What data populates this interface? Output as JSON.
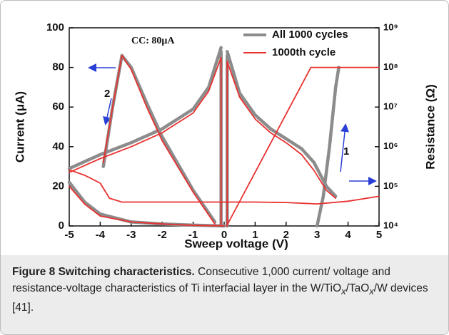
{
  "chart_data": {
    "type": "line",
    "xlabel": "Sweep voltage (V)",
    "ylabel": "Current (μA)",
    "y2label": "Resistance (Ω)",
    "annotations": [
      "CC: 80μA",
      "1",
      "2"
    ],
    "xlim": [
      -5,
      5
    ],
    "xticks": [
      -5,
      -4,
      -3,
      -2,
      -1,
      0,
      1,
      2,
      3,
      4,
      5
    ],
    "ylim": [
      0,
      100
    ],
    "yticks": [
      0,
      20,
      40,
      60,
      80,
      100
    ],
    "y2lim": [
      10000,
      1000000000
    ],
    "y2log": true,
    "y2ticks": [
      {
        "value": 10000,
        "label": "10⁴"
      },
      {
        "value": 100000,
        "label": "10⁵"
      },
      {
        "value": 1000000,
        "label": "10⁶"
      },
      {
        "value": 10000000,
        "label": "10⁷"
      },
      {
        "value": 100000000,
        "label": "10⁸"
      },
      {
        "value": 1000000000,
        "label": "10⁹"
      }
    ],
    "legend": "upper right",
    "series": [
      {
        "name": "All 1000 cycles",
        "color": "#8c8c8c",
        "x": [
          0.1,
          0.5,
          1,
          1.5,
          2,
          2.5,
          2.9,
          3.3,
          3.6,
          null,
          3.0,
          3.2,
          3.4,
          3.6,
          3.7,
          null,
          -0.1,
          -0.5,
          -1,
          -2,
          -3,
          -4,
          -5,
          null,
          -3.9,
          -3.6,
          -3.3,
          -3.0,
          -2.5,
          -2,
          -1,
          -0.3,
          null,
          -5,
          -4.5,
          -4,
          -3,
          -2,
          -1,
          0,
          null,
          -0.1,
          -0.1,
          null,
          0.1,
          0.1
        ],
        "values": [
          88,
          67,
          56,
          49,
          44,
          39,
          32,
          20,
          15,
          null,
          0,
          15,
          40,
          70,
          80,
          null,
          90,
          70,
          59,
          49,
          42,
          36,
          29,
          null,
          30,
          60,
          86,
          80,
          62,
          45,
          18,
          2,
          null,
          22,
          12,
          6,
          2,
          1,
          0.4,
          0,
          null,
          0,
          88,
          null,
          0,
          86
        ]
      },
      {
        "name": "1000th cycle",
        "color": "#e8312f",
        "x": [
          0.08,
          2.8,
          5,
          null,
          0.1,
          0.5,
          1,
          1.5,
          2,
          2.5,
          2.9,
          3.3,
          3.6,
          null,
          -0.1,
          -0.5,
          -1,
          -2,
          -3,
          -4,
          -5,
          null,
          -3.9,
          -3.6,
          -3.3,
          -3.0,
          -2.5,
          -2,
          -1,
          -0.3,
          null,
          -5,
          -4.5,
          -4,
          -3,
          -2,
          -1,
          0,
          null,
          -0.1,
          -0.1,
          null,
          0.1,
          0.1
        ],
        "values": [
          0,
          80,
          80,
          null,
          83,
          65,
          54,
          47,
          42,
          36,
          28,
          18,
          14,
          null,
          85,
          68,
          57,
          47,
          40,
          34,
          27,
          null,
          32,
          60,
          86,
          79,
          60,
          43,
          17,
          1,
          null,
          20,
          11,
          5,
          2,
          1,
          0.3,
          0,
          null,
          0,
          85,
          null,
          0,
          83
        ]
      },
      {
        "color": "#e8312f",
        "axis": "y2",
        "x": [
          -5,
          -4.5,
          -4.0,
          -3.7,
          -3.3,
          -3,
          -2,
          -1,
          0,
          1,
          2,
          3,
          4,
          5
        ],
        "values": [
          260000,
          190000,
          120000,
          50000,
          40000,
          40000,
          40000,
          40000,
          40000,
          40000,
          39000,
          36000,
          42000,
          56000
        ]
      }
    ]
  },
  "caption": {
    "title": "Figure 8 Switching characteristics.",
    "parts": [
      " Consecutive 1,000 current/ voltage and resistance-voltage characteristics of Ti interfacial layer in the W/TiO",
      "x",
      "/TaO",
      "x",
      "/W devices [41]."
    ]
  }
}
